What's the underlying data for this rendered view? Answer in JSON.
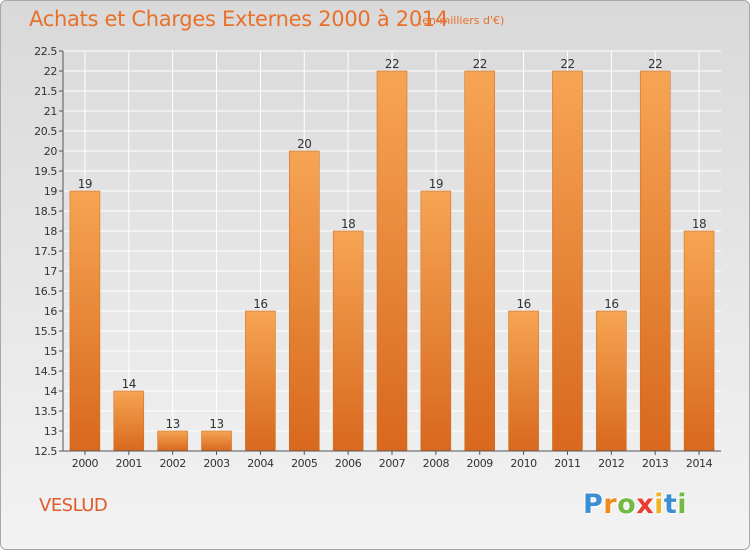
{
  "header": {
    "title": "Achats et Charges Externes 2000 à 2014",
    "subtitle": "(en milliers d'€)"
  },
  "footer": {
    "commune": "VESLUD",
    "logo_letters": [
      "P",
      "r",
      "o",
      "x",
      "i",
      "t",
      "i"
    ],
    "logo_colors": [
      "#3a8fd4",
      "#f08a1e",
      "#74b943",
      "#e83e2f",
      "#f0b323",
      "#3a8fd4",
      "#74b943"
    ]
  },
  "colors": {
    "bar_top": "#f6a553",
    "bar_bottom": "#d8681d",
    "grid": "#ffffff",
    "axis_text": "#333333",
    "title": "#e8702a"
  },
  "chart_data": {
    "type": "bar",
    "categories": [
      "2000",
      "2001",
      "2002",
      "2003",
      "2004",
      "2005",
      "2006",
      "2007",
      "2008",
      "2009",
      "2010",
      "2011",
      "2012",
      "2013",
      "2014"
    ],
    "values": [
      19,
      14,
      13,
      13,
      16,
      20,
      18,
      22,
      19,
      22,
      16,
      22,
      16,
      22,
      18
    ],
    "ylim": [
      12.5,
      22.5
    ],
    "yticks": [
      "12.5",
      "13",
      "13.5",
      "14",
      "14.5",
      "15",
      "15.5",
      "16",
      "16.5",
      "17",
      "17.5",
      "18",
      "18.5",
      "19",
      "19.5",
      "20",
      "20.5",
      "21",
      "21.5",
      "22",
      "22.5"
    ],
    "grid": true,
    "title": "Achats et Charges Externes 2000 à 2014",
    "xlabel": "",
    "ylabel": ""
  }
}
